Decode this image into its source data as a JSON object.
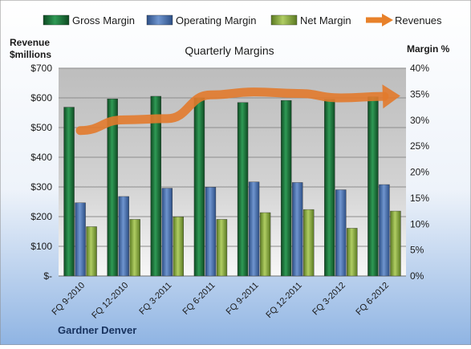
{
  "chart_data": {
    "type": "bar",
    "title": "Quarterly Margins",
    "footer": "Gardner Denver",
    "left_axis_title": [
      "Revenue",
      "$millions"
    ],
    "right_axis_title": "Margin %",
    "left_ticks": [
      "$-",
      "$100",
      "$200",
      "$300",
      "$400",
      "$500",
      "$600",
      "$700"
    ],
    "right_ticks": [
      "0%",
      "5%",
      "10%",
      "15%",
      "20%",
      "25%",
      "30%",
      "35%",
      "40%"
    ],
    "ylim_left": [
      0,
      700
    ],
    "ylim_right": [
      0,
      40
    ],
    "grid": true,
    "legend_position": "top",
    "categories": [
      "FQ 9-2010",
      "FQ 12-2010",
      "FQ 3-2011",
      "FQ 6-2011",
      "FQ 9-2011",
      "FQ 12-2011",
      "FQ 3-2012",
      "FQ 6-2012"
    ],
    "series": [
      {
        "name": "Gross Margin",
        "type": "bar",
        "axis": "right",
        "color": "#1f7a3f",
        "values": [
          32.5,
          34.1,
          34.6,
          34.3,
          33.4,
          33.8,
          34.0,
          34.5
        ]
      },
      {
        "name": "Operating Margin",
        "type": "bar",
        "axis": "right",
        "color": "#4a72b0",
        "values": [
          14.1,
          15.3,
          16.9,
          17.1,
          18.1,
          18.0,
          16.6,
          17.6
        ]
      },
      {
        "name": "Net Margin",
        "type": "bar",
        "axis": "right",
        "color": "#8aab3c",
        "values": [
          9.5,
          10.9,
          11.4,
          10.9,
          12.2,
          12.8,
          9.2,
          12.5
        ]
      },
      {
        "name": "Revenues",
        "type": "line",
        "axis": "left",
        "color": "#e8812a",
        "values": [
          490,
          526,
          530,
          610,
          620,
          615,
          600,
          605
        ]
      }
    ]
  }
}
